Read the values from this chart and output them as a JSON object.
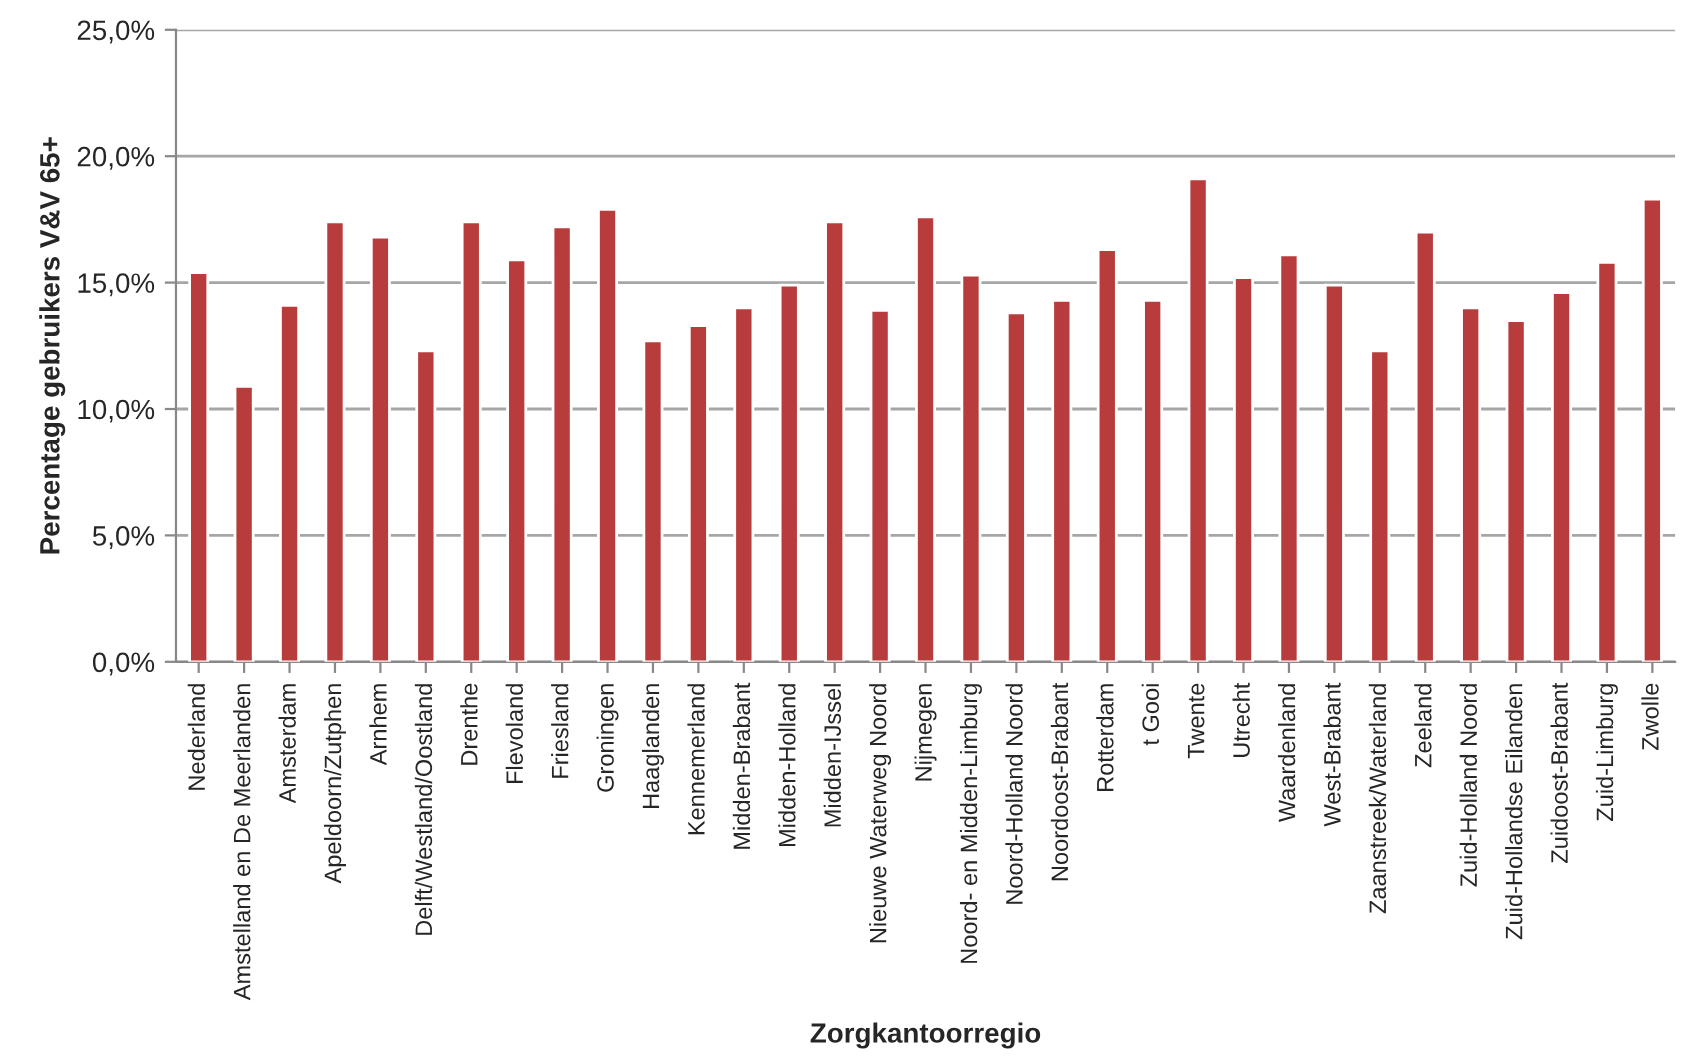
{
  "chart_data": {
    "type": "bar",
    "xlabel": "Zorgkantoorregio",
    "ylabel": "Percentage gebruikers V&V 65+",
    "categories": [
      "Nederland",
      "Amstelland en De Meerlanden",
      "Amsterdam",
      "Apeldoorn/Zutphen",
      "Arnhem",
      "Delft/Westland/Oostland",
      "Drenthe",
      "Flevoland",
      "Friesland",
      "Groningen",
      "Haaglanden",
      "Kennemerland",
      "Midden-Brabant",
      "Midden-Holland",
      "Midden-IJssel",
      "Nieuwe Waterweg Noord",
      "Nijmegen",
      "Noord- en Midden-Limburg",
      "Noord-Holland Noord",
      "Noordoost-Brabant",
      "Rotterdam",
      "t Gooi",
      "Twente",
      "Utrecht",
      "Waardenland",
      "West-Brabant",
      "Zaanstreek/Waterland",
      "Zeeland",
      "Zuid-Holland Noord",
      "Zuid-Hollandse Eilanden",
      "Zuidoost-Brabant",
      "Zuid-Limburg",
      "Zwolle"
    ],
    "values": [
      15.4,
      10.9,
      14.1,
      17.4,
      16.8,
      12.3,
      17.4,
      15.9,
      17.2,
      17.9,
      12.7,
      13.3,
      14.0,
      14.9,
      17.4,
      13.9,
      17.6,
      15.3,
      13.8,
      14.3,
      16.3,
      14.3,
      19.1,
      15.2,
      16.1,
      14.9,
      12.3,
      17.0,
      14.0,
      13.5,
      14.6,
      15.8,
      18.3
    ],
    "color": "#b83c3c",
    "ylim": [
      0,
      25
    ],
    "yticks": [
      {
        "value": 0,
        "label": "0,0%"
      },
      {
        "value": 5,
        "label": "5,0%"
      },
      {
        "value": 10,
        "label": "10,0%"
      },
      {
        "value": 15,
        "label": "15,0%"
      },
      {
        "value": 20,
        "label": "20,0%"
      },
      {
        "value": 25,
        "label": "25,0%"
      }
    ],
    "grid": "y"
  }
}
